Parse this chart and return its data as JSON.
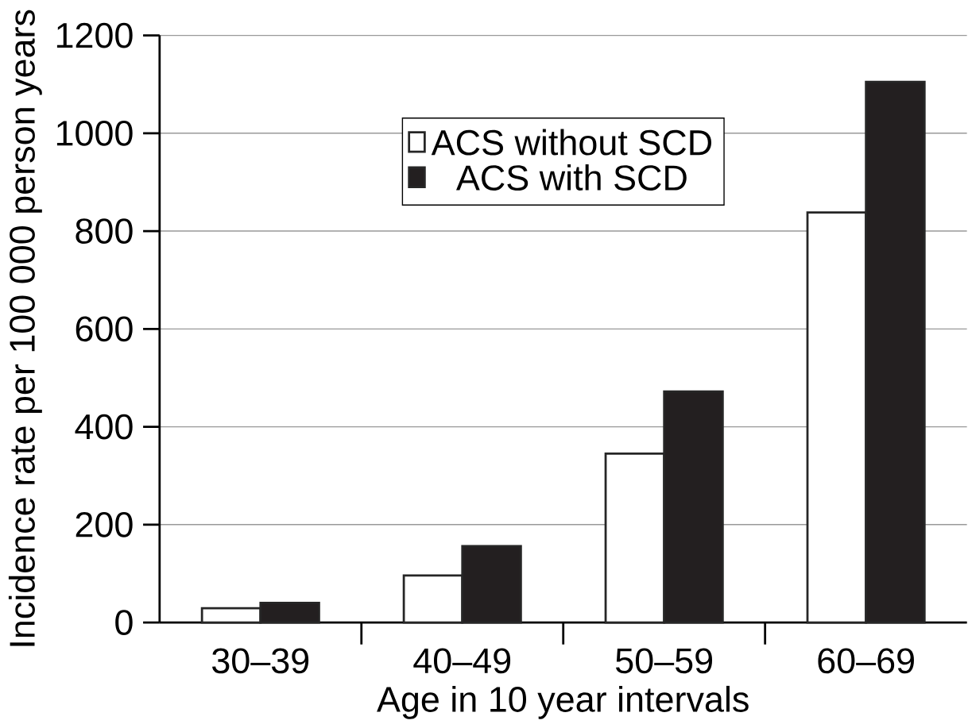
{
  "chart_data": {
    "type": "bar",
    "xlabel": "Age in 10 year intervals",
    "ylabel": "Incidence rate per 100 000 person years",
    "categories": [
      "30–39",
      "40–49",
      "50–59",
      "60–69"
    ],
    "series": [
      {
        "name": "ACS without SCD",
        "color": "#ffffff",
        "values": [
          29,
          96,
          345,
          838
        ]
      },
      {
        "name": "ACS with SCD",
        "color": "#231f20",
        "values": [
          40,
          156,
          472,
          1105
        ]
      }
    ],
    "ylim": [
      0,
      1200
    ],
    "yticks": [
      0,
      200,
      400,
      600,
      800,
      1000,
      1200
    ],
    "grid": "y",
    "legend": "top"
  }
}
